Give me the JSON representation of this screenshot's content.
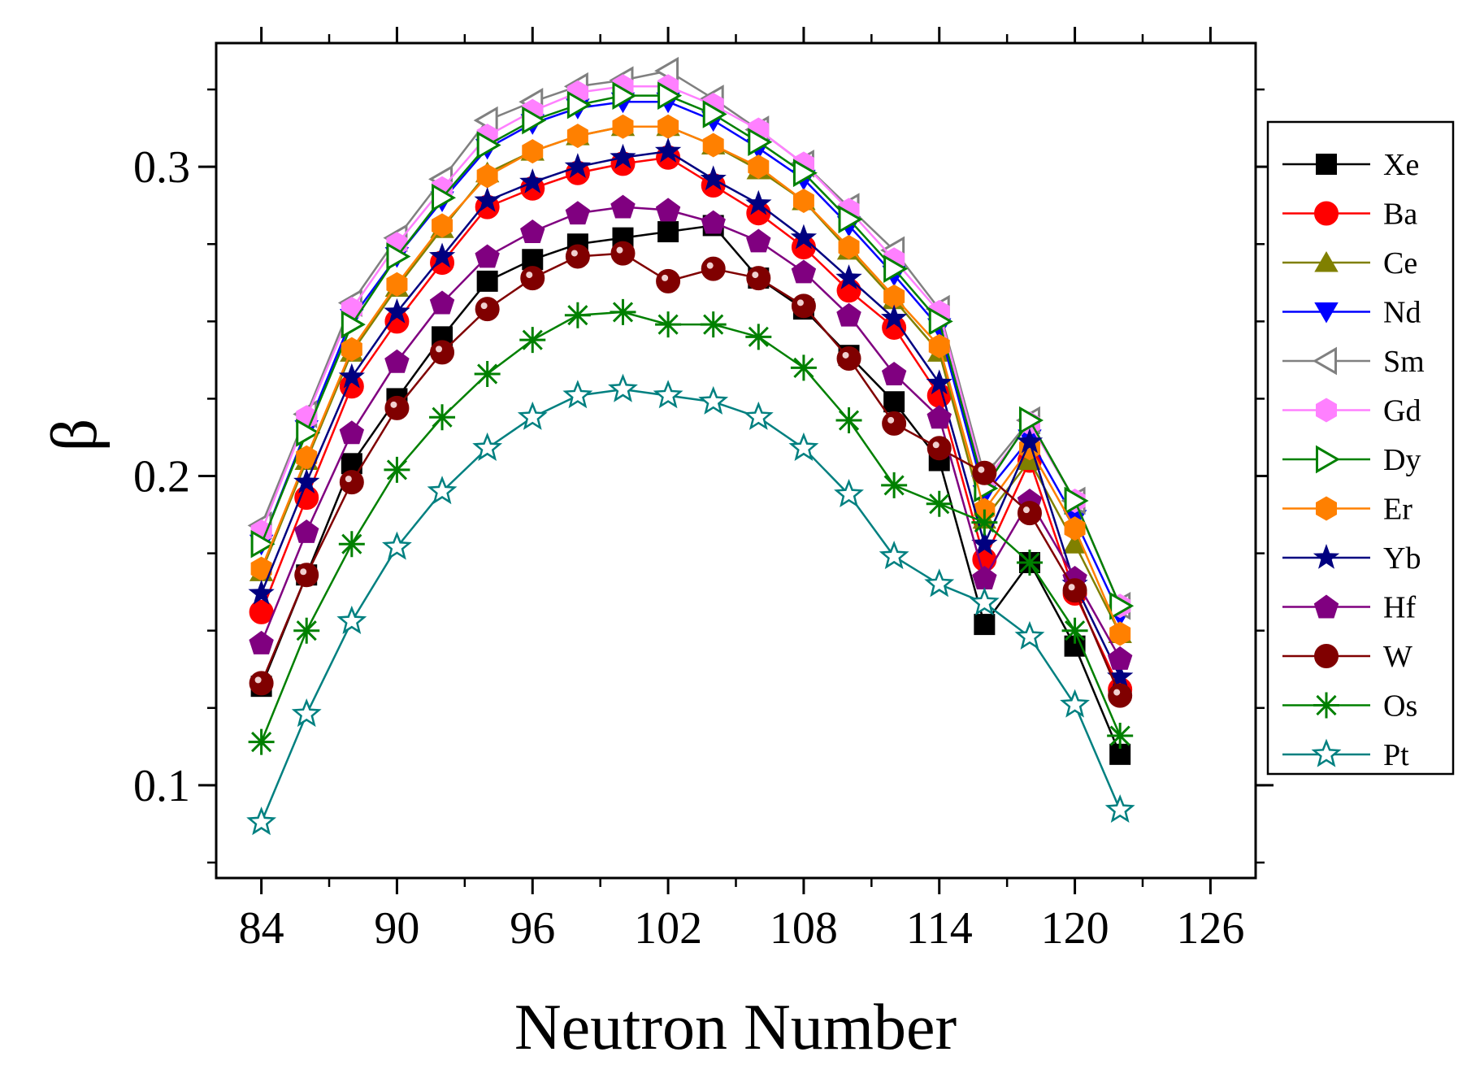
{
  "chart_data": {
    "type": "line",
    "title": "",
    "xlabel": "Neutron Number",
    "ylabel": "β",
    "xlim": [
      82,
      128
    ],
    "ylim": [
      0.07,
      0.34
    ],
    "x_ticks": [
      84,
      90,
      96,
      102,
      108,
      114,
      120,
      126
    ],
    "x_tick_labels": [
      "84",
      "90",
      "96",
      "102",
      "108",
      "114",
      "120",
      "126"
    ],
    "y_ticks": [
      0.1,
      0.2,
      0.3
    ],
    "y_tick_labels": [
      "0.1",
      "0.2",
      "0.3"
    ],
    "legend_position": "right",
    "x": [
      84,
      86,
      88,
      90,
      92,
      94,
      96,
      98,
      100,
      102,
      104,
      106,
      108,
      110,
      112,
      114,
      116,
      118,
      120,
      122
    ],
    "series": [
      {
        "name": "Xe",
        "color": "#000000",
        "marker": "square",
        "fill": "#000000",
        "values": [
          0.132,
          0.168,
          0.204,
          0.225,
          0.245,
          0.263,
          0.27,
          0.275,
          0.277,
          0.279,
          0.281,
          0.264,
          0.254,
          0.239,
          0.224,
          0.205,
          0.152,
          0.172,
          0.145,
          0.11
        ]
      },
      {
        "name": "Ba",
        "color": "#ff0000",
        "marker": "circle",
        "fill": "#ff0000",
        "values": [
          0.156,
          0.193,
          0.229,
          0.25,
          0.269,
          0.287,
          0.293,
          0.298,
          0.301,
          0.303,
          0.294,
          0.285,
          0.274,
          0.26,
          0.248,
          0.226,
          0.173,
          0.205,
          0.162,
          0.131
        ]
      },
      {
        "name": "Ce",
        "color": "#808000",
        "marker": "triangle-up",
        "fill": "#808000",
        "values": [
          0.169,
          0.205,
          0.24,
          0.261,
          0.28,
          0.298,
          0.305,
          0.31,
          0.313,
          0.313,
          0.307,
          0.299,
          0.289,
          0.273,
          0.257,
          0.24,
          0.186,
          0.205,
          0.178,
          0.149
        ]
      },
      {
        "name": "Nd",
        "color": "#0000ff",
        "marker": "triangle-down",
        "fill": "#0000ff",
        "values": [
          0.178,
          0.215,
          0.251,
          0.271,
          0.289,
          0.306,
          0.314,
          0.319,
          0.321,
          0.321,
          0.315,
          0.306,
          0.296,
          0.281,
          0.265,
          0.248,
          0.194,
          0.212,
          0.186,
          0.155
        ]
      },
      {
        "name": "Sm",
        "color": "#808080",
        "marker": "triangle-left",
        "fill": "none",
        "values": [
          0.184,
          0.22,
          0.256,
          0.277,
          0.296,
          0.315,
          0.321,
          0.326,
          0.328,
          0.331,
          0.322,
          0.312,
          0.301,
          0.287,
          0.273,
          0.254,
          0.2,
          0.218,
          0.192,
          0.158
        ]
      },
      {
        "name": "Gd",
        "color": "#ff80ff",
        "marker": "hexagon",
        "fill": "#ff80ff",
        "values": [
          0.182,
          0.219,
          0.254,
          0.275,
          0.293,
          0.31,
          0.318,
          0.324,
          0.326,
          0.326,
          0.32,
          0.312,
          0.301,
          0.286,
          0.27,
          0.253,
          0.198,
          0.217,
          0.192,
          0.158
        ]
      },
      {
        "name": "Dy",
        "color": "#008000",
        "marker": "triangle-right",
        "fill": "none",
        "values": [
          0.178,
          0.214,
          0.249,
          0.271,
          0.29,
          0.307,
          0.315,
          0.32,
          0.323,
          0.323,
          0.317,
          0.308,
          0.298,
          0.283,
          0.267,
          0.25,
          0.196,
          0.218,
          0.192,
          0.158
        ]
      },
      {
        "name": "Er",
        "color": "#ff8000",
        "marker": "hexagon",
        "fill": "#ff8000",
        "values": [
          0.17,
          0.206,
          0.241,
          0.262,
          0.281,
          0.297,
          0.305,
          0.31,
          0.313,
          0.313,
          0.307,
          0.3,
          0.289,
          0.274,
          0.258,
          0.242,
          0.189,
          0.209,
          0.183,
          0.149
        ]
      },
      {
        "name": "Yb",
        "color": "#000080",
        "marker": "star",
        "fill": "#000080",
        "values": [
          0.162,
          0.198,
          0.232,
          0.253,
          0.271,
          0.289,
          0.295,
          0.3,
          0.303,
          0.305,
          0.296,
          0.288,
          0.277,
          0.264,
          0.251,
          0.23,
          0.178,
          0.211,
          0.165,
          0.135
        ]
      },
      {
        "name": "Hf",
        "color": "#800080",
        "marker": "pentagon",
        "fill": "#800080",
        "values": [
          0.146,
          0.182,
          0.214,
          0.237,
          0.256,
          0.271,
          0.279,
          0.285,
          0.287,
          0.286,
          0.282,
          0.276,
          0.266,
          0.252,
          0.233,
          0.219,
          0.167,
          0.192,
          0.167,
          0.141
        ]
      },
      {
        "name": "W",
        "color": "#800000",
        "marker": "circle",
        "fill": "#800000",
        "values": [
          0.133,
          0.168,
          0.198,
          0.222,
          0.24,
          0.254,
          0.264,
          0.271,
          0.272,
          0.263,
          0.267,
          0.264,
          0.255,
          0.238,
          0.217,
          0.209,
          0.201,
          0.188,
          0.163,
          0.129
        ]
      },
      {
        "name": "Os",
        "color": "#008000",
        "marker": "asterisk",
        "fill": "none",
        "values": [
          0.114,
          0.15,
          0.178,
          0.202,
          0.219,
          0.233,
          0.244,
          0.252,
          0.253,
          0.249,
          0.249,
          0.245,
          0.235,
          0.218,
          0.197,
          0.191,
          0.185,
          0.172,
          0.15,
          0.116
        ]
      },
      {
        "name": "Pt",
        "color": "#008080",
        "marker": "star-open",
        "fill": "none",
        "values": [
          0.088,
          0.123,
          0.153,
          0.177,
          0.195,
          0.209,
          0.219,
          0.226,
          0.228,
          0.226,
          0.224,
          0.219,
          0.209,
          0.194,
          0.174,
          0.165,
          0.159,
          0.148,
          0.126,
          0.092
        ]
      }
    ]
  }
}
